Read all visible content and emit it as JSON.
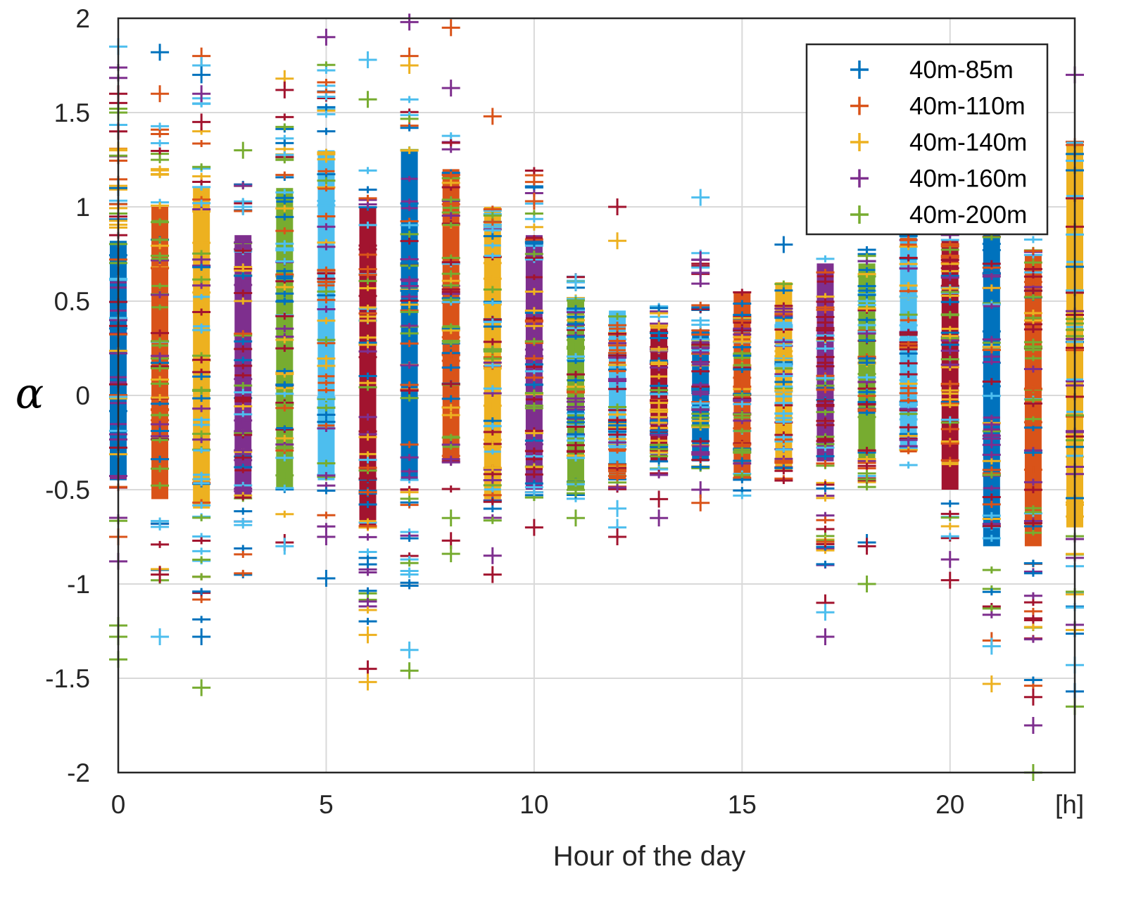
{
  "chart_data": {
    "type": "scatter",
    "marker": "+",
    "xlabel": "Hour of the day",
    "xunit": "[h]",
    "ylabel": "α",
    "xlim": [
      0,
      23
    ],
    "ylim": [
      -2,
      2
    ],
    "xticks": [
      0,
      5,
      10,
      15,
      20
    ],
    "yticks": [
      2,
      1.5,
      1,
      0.5,
      0,
      -0.5,
      -1,
      -1.5,
      -2
    ],
    "ytick_labels": [
      "2",
      "1.5",
      "1",
      "0.5",
      "0",
      "-0.5",
      "-1",
      "-1.5",
      "-2"
    ],
    "grid": true,
    "legend_position": "top-right",
    "series": [
      {
        "name": "40m-85m",
        "color": "#0072BD"
      },
      {
        "name": "40m-110m",
        "color": "#D95319"
      },
      {
        "name": "40m-140m",
        "color": "#EDB120"
      },
      {
        "name": "40m-160m",
        "color": "#7E2F8E"
      },
      {
        "name": "40m-200m",
        "color": "#77AC30"
      }
    ],
    "palette": [
      "#0072BD",
      "#D95319",
      "#EDB120",
      "#7E2F8E",
      "#77AC30",
      "#4DBEEE",
      "#A2142F"
    ],
    "columns": [
      {
        "hour": 0,
        "dense": [
          -0.45,
          0.82
        ],
        "spread": [
          -0.7,
          1.75
        ],
        "outliers": [
          1.85,
          1.6,
          1.5,
          1.4,
          1.3,
          1.1,
          -0.75,
          -0.88,
          -1.22,
          -1.28,
          -1.4
        ]
      },
      {
        "hour": 1,
        "dense": [
          -0.55,
          1.0
        ],
        "spread": [
          -1.0,
          1.45
        ],
        "outliers": [
          1.82,
          1.6,
          -0.95,
          -1.28
        ]
      },
      {
        "hour": 2,
        "dense": [
          -0.6,
          1.1
        ],
        "spread": [
          -1.2,
          1.6
        ],
        "outliers": [
          1.8,
          1.75,
          1.7,
          1.6,
          1.45,
          -1.28,
          -1.55
        ]
      },
      {
        "hour": 3,
        "dense": [
          -0.55,
          0.85
        ],
        "spread": [
          -0.98,
          1.2
        ],
        "outliers": [
          1.3,
          1.0
        ]
      },
      {
        "hour": 4,
        "dense": [
          -0.5,
          1.1
        ],
        "spread": [
          -0.65,
          1.5
        ],
        "outliers": [
          1.68,
          1.62,
          -0.78,
          -0.8
        ]
      },
      {
        "hour": 5,
        "dense": [
          -0.45,
          1.3
        ],
        "spread": [
          -0.7,
          1.8
        ],
        "outliers": [
          1.9,
          -0.75,
          -0.97
        ]
      },
      {
        "hour": 6,
        "dense": [
          -0.7,
          1.0
        ],
        "spread": [
          -1.2,
          1.3
        ],
        "outliers": [
          1.78,
          1.57,
          -1.27,
          -1.45,
          -1.52
        ]
      },
      {
        "hour": 7,
        "dense": [
          -0.45,
          1.3
        ],
        "spread": [
          -1.05,
          1.58
        ],
        "outliers": [
          1.98,
          1.8,
          1.75,
          -1.35,
          -1.46
        ]
      },
      {
        "hour": 8,
        "dense": [
          -0.35,
          1.2
        ],
        "spread": [
          -0.5,
          1.45
        ],
        "outliers": [
          1.95,
          1.63,
          -0.65,
          -0.77,
          -0.84
        ]
      },
      {
        "hour": 9,
        "dense": [
          -0.55,
          1.0
        ],
        "spread": [
          -0.7,
          1.05
        ],
        "outliers": [
          1.48,
          -0.85,
          -0.95
        ]
      },
      {
        "hour": 10,
        "dense": [
          -0.5,
          0.85
        ],
        "spread": [
          -0.57,
          1.2
        ],
        "outliers": [
          1.03,
          -0.7
        ]
      },
      {
        "hour": 11,
        "dense": [
          -0.5,
          0.52
        ],
        "spread": [
          -0.55,
          0.75
        ],
        "outliers": [
          0.6,
          -0.65
        ]
      },
      {
        "hour": 12,
        "dense": [
          -0.45,
          0.45
        ],
        "spread": [
          -0.5,
          0.45
        ],
        "outliers": [
          1.0,
          0.82,
          -0.6,
          -0.7,
          -0.75
        ]
      },
      {
        "hour": 13,
        "dense": [
          -0.35,
          0.38
        ],
        "spread": [
          -0.45,
          0.5
        ],
        "outliers": [
          -0.55,
          -0.65
        ]
      },
      {
        "hour": 14,
        "dense": [
          -0.35,
          0.35
        ],
        "spread": [
          -0.4,
          0.78
        ],
        "outliers": [
          1.05,
          0.72,
          0.65,
          -0.5,
          -0.57
        ]
      },
      {
        "hour": 15,
        "dense": [
          -0.45,
          0.55
        ],
        "spread": [
          -0.55,
          0.55
        ],
        "outliers": []
      },
      {
        "hour": 16,
        "dense": [
          -0.4,
          0.6
        ],
        "spread": [
          -0.48,
          0.6
        ],
        "outliers": [
          0.8
        ]
      },
      {
        "hour": 17,
        "dense": [
          -0.35,
          0.7
        ],
        "spread": [
          -0.9,
          0.75
        ],
        "outliers": [
          -1.1,
          -1.15,
          -1.28
        ]
      },
      {
        "hour": 18,
        "dense": [
          -0.35,
          0.7
        ],
        "spread": [
          -0.5,
          0.8
        ],
        "outliers": [
          -0.78,
          -0.8,
          -1.0
        ]
      },
      {
        "hour": 19,
        "dense": [
          -0.3,
          0.85
        ],
        "spread": [
          -0.38,
          0.9
        ],
        "outliers": []
      },
      {
        "hour": 20,
        "dense": [
          -0.5,
          0.82
        ],
        "spread": [
          -0.8,
          0.9
        ],
        "outliers": [
          -0.87,
          -0.98
        ]
      },
      {
        "hour": 21,
        "dense": [
          -0.8,
          0.9
        ],
        "spread": [
          -1.2,
          0.95
        ],
        "outliers": [
          -1.3,
          -1.33,
          -1.53
        ]
      },
      {
        "hour": 22,
        "dense": [
          -0.8,
          0.75
        ],
        "spread": [
          -1.55,
          0.85
        ],
        "outliers": [
          -1.6,
          -1.75,
          -2.0
        ]
      },
      {
        "hour": 23,
        "dense": [
          -0.7,
          1.35
        ],
        "spread": [
          -1.3,
          1.4
        ],
        "outliers": [
          1.7,
          -1.43,
          -1.57,
          -1.65
        ]
      }
    ]
  }
}
